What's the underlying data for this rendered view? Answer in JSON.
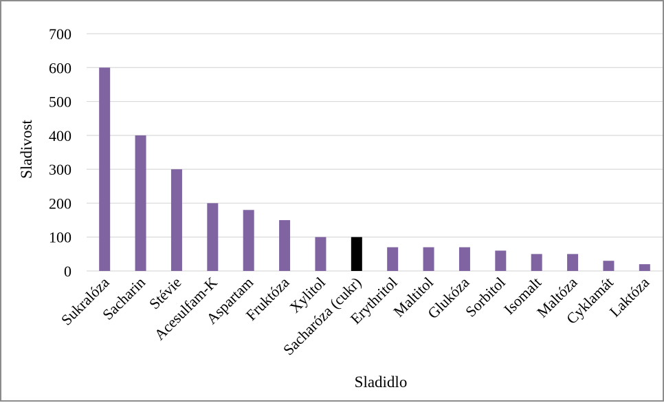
{
  "chart_data": {
    "type": "bar",
    "xlabel": "Sladidlo",
    "ylabel": "Sladivost",
    "ylim": [
      0,
      700
    ],
    "yticks": [
      0,
      100,
      200,
      300,
      400,
      500,
      600,
      700
    ],
    "grid": true,
    "legend": "none",
    "bar_color": "#8064a2",
    "highlight_color": "#000000",
    "highlight_category": "Sacharóza (cukr)",
    "categories": [
      "Sukralóza",
      "Sacharin",
      "Stévie",
      "Acesulfam-K",
      "Aspartam",
      "Fruktóza",
      "Xylitol",
      "Sacharóza (cukr)",
      "Erythritol",
      "Maltitol",
      "Glukóza",
      "Sorbitol",
      "Isomalt",
      "Maltóza",
      "Cyklamát",
      "Laktóza"
    ],
    "values": [
      600,
      400,
      300,
      200,
      180,
      150,
      100,
      100,
      70,
      70,
      70,
      60,
      50,
      50,
      30,
      20
    ]
  }
}
